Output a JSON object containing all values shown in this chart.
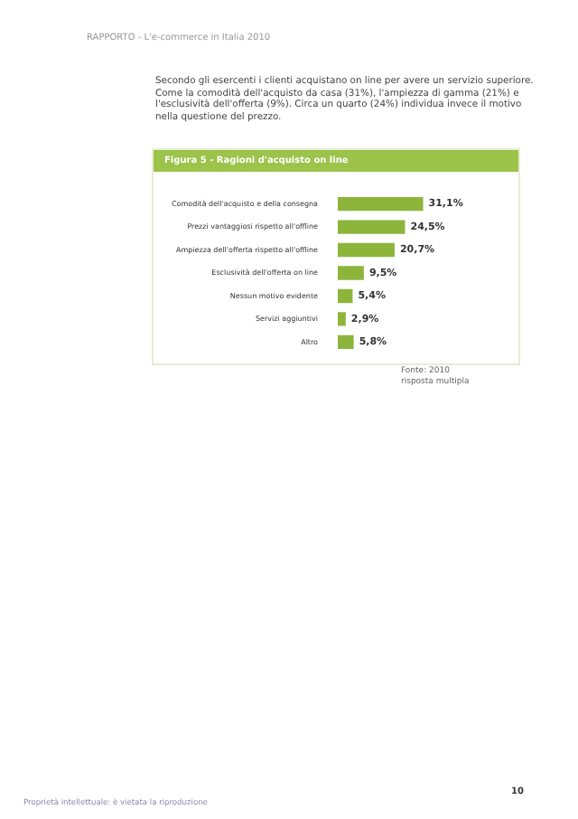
{
  "chart_data": {
    "type": "bar",
    "orientation": "horizontal",
    "title": "Figura 5 - Ragioni d'acquisto on line",
    "categories": [
      "Comodità dell'acquisto e della consegna",
      "Prezzi vantaggiosi rispetto all'offline",
      "Ampiezza dell'offerta rispetto all'offline",
      "Esclusività dell'offerta on line",
      "Nessun motivo evidente",
      "Servizi aggiuntivi",
      "Altro"
    ],
    "values": [
      31.1,
      24.5,
      20.7,
      9.5,
      5.4,
      2.9,
      5.8
    ],
    "value_labels": [
      "31,1%",
      "24,5%",
      "20,7%",
      "9,5%",
      "5,4%",
      "2,9%",
      "5,8%"
    ],
    "color": "#8db53c",
    "legend": false,
    "tick_labels": "y",
    "annotations": [
      "RAPPORTO - L'e-commerce in Italia 2010",
      "Secondo gli esercenti i clienti acquistano on line per avere un servizio superiore. Come la comodità dell'acquisto da casa (31%), l'ampiezza di gamma (21%) e l'esclusività dell'offerta (9%). Circa un quarto (24%) individua invece il motivo nella questione del prezzo.",
      "Fonte: 2010",
      "risposta multipla",
      "10",
      "Proprietà intellettuale: è vietata la riproduzione"
    ]
  }
}
